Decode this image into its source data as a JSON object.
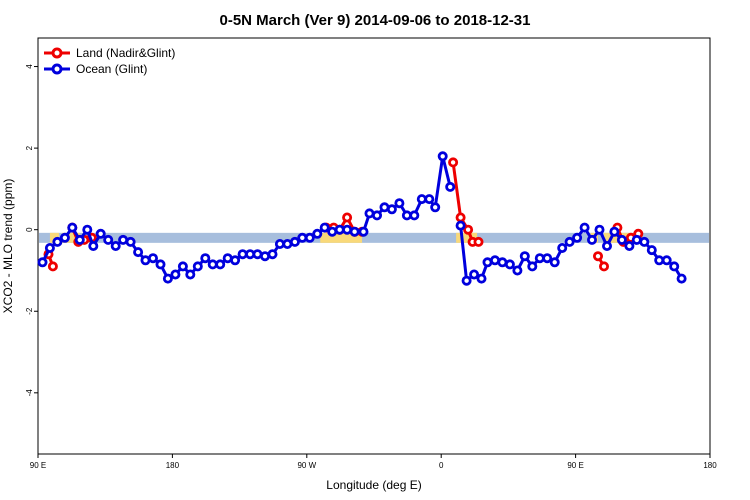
{
  "chart_data": {
    "type": "line",
    "title": "0-5N March (Ver 9)   2014-09-06 to 2018-12-31",
    "xlabel": "Longitude (deg E)",
    "ylabel": "XCO2 - MLO trend (ppm)",
    "xlim": [
      90,
      540
    ],
    "ylim": [
      -5.5,
      4.7
    ],
    "x_ticks": [
      {
        "value": 90,
        "label": "90 E"
      },
      {
        "value": 180,
        "label": "180"
      },
      {
        "value": 270,
        "label": "90 W"
      },
      {
        "value": 360,
        "label": "0"
      },
      {
        "value": 450,
        "label": "90 E"
      },
      {
        "value": 540,
        "label": "180"
      }
    ],
    "y_ticks": [
      {
        "value": -4,
        "label": "-4"
      },
      {
        "value": -2,
        "label": "-2"
      },
      {
        "value": 0,
        "label": "0"
      },
      {
        "value": 2,
        "label": "2"
      },
      {
        "value": 4,
        "label": "4"
      }
    ],
    "legend_position": "top-left",
    "band": {
      "y": -0.2,
      "color_ocean": "#a7bedd",
      "color_land": "#f9d97a",
      "land_ranges": [
        [
          98,
          104
        ],
        [
          106,
          118
        ],
        [
          279,
          307
        ],
        [
          370,
          384
        ],
        [
          460,
          465
        ],
        [
          469,
          488
        ]
      ]
    },
    "series": [
      {
        "name": "Land (Nadir&Glint)",
        "color": "#ee0000",
        "segments": [
          [
            [
              97,
              -0.6
            ],
            [
              100,
              -0.9
            ]
          ],
          [
            [
              113,
              0.05
            ],
            [
              117,
              -0.3
            ],
            [
              121,
              -0.25
            ],
            [
              126,
              -0.2
            ]
          ],
          [
            [
              283,
              0.05
            ],
            [
              288,
              0.05
            ],
            [
              292,
              0.0
            ],
            [
              297,
              0.3
            ],
            [
              302,
              -0.05
            ],
            [
              307,
              -0.05
            ]
          ],
          [
            [
              368,
              1.65
            ],
            [
              373,
              0.3
            ],
            [
              378,
              0.0
            ],
            [
              381,
              -0.3
            ],
            [
              385,
              -0.3
            ]
          ],
          [
            [
              465,
              -0.65
            ],
            [
              469,
              -0.9
            ]
          ],
          [
            [
              478,
              0.05
            ],
            [
              482,
              -0.3
            ],
            [
              487,
              -0.2
            ],
            [
              492,
              -0.1
            ]
          ]
        ]
      },
      {
        "name": "Ocean (Glint)",
        "color": "#0000dd",
        "segments": [
          [
            [
              93,
              -0.8
            ],
            [
              98,
              -0.45
            ],
            [
              103,
              -0.3
            ],
            [
              108,
              -0.2
            ],
            [
              113,
              0.05
            ],
            [
              118,
              -0.25
            ],
            [
              123,
              0.0
            ],
            [
              127,
              -0.4
            ],
            [
              132,
              -0.1
            ],
            [
              137,
              -0.25
            ],
            [
              142,
              -0.4
            ],
            [
              147,
              -0.25
            ],
            [
              152,
              -0.3
            ],
            [
              157,
              -0.55
            ],
            [
              162,
              -0.75
            ],
            [
              167,
              -0.7
            ],
            [
              172,
              -0.85
            ],
            [
              177,
              -1.2
            ],
            [
              182,
              -1.1
            ],
            [
              187,
              -0.9
            ],
            [
              192,
              -1.1
            ],
            [
              197,
              -0.9
            ],
            [
              202,
              -0.7
            ],
            [
              207,
              -0.85
            ],
            [
              212,
              -0.85
            ],
            [
              217,
              -0.7
            ],
            [
              222,
              -0.75
            ],
            [
              227,
              -0.6
            ],
            [
              232,
              -0.6
            ],
            [
              237,
              -0.6
            ],
            [
              242,
              -0.65
            ],
            [
              247,
              -0.6
            ],
            [
              252,
              -0.35
            ],
            [
              257,
              -0.35
            ],
            [
              262,
              -0.3
            ],
            [
              267,
              -0.2
            ],
            [
              272,
              -0.2
            ],
            [
              277,
              -0.1
            ],
            [
              282,
              0.05
            ],
            [
              287,
              -0.05
            ],
            [
              292,
              0.0
            ],
            [
              297,
              0.0
            ],
            [
              302,
              -0.05
            ],
            [
              308,
              -0.05
            ],
            [
              312,
              0.4
            ],
            [
              317,
              0.35
            ],
            [
              322,
              0.55
            ],
            [
              327,
              0.5
            ],
            [
              332,
              0.65
            ],
            [
              337,
              0.35
            ],
            [
              342,
              0.35
            ],
            [
              347,
              0.75
            ],
            [
              352,
              0.75
            ],
            [
              356,
              0.55
            ],
            [
              361,
              1.8
            ],
            [
              366,
              1.05
            ]
          ],
          [
            [
              373,
              0.1
            ],
            [
              377,
              -1.25
            ],
            [
              382,
              -1.1
            ],
            [
              387,
              -1.2
            ],
            [
              391,
              -0.8
            ],
            [
              396,
              -0.75
            ],
            [
              401,
              -0.8
            ],
            [
              406,
              -0.85
            ],
            [
              411,
              -1.0
            ],
            [
              416,
              -0.65
            ],
            [
              421,
              -0.9
            ],
            [
              426,
              -0.7
            ],
            [
              431,
              -0.7
            ],
            [
              436,
              -0.8
            ],
            [
              441,
              -0.45
            ],
            [
              446,
              -0.3
            ],
            [
              451,
              -0.2
            ],
            [
              456,
              0.05
            ],
            [
              461,
              -0.25
            ],
            [
              466,
              0.0
            ],
            [
              471,
              -0.4
            ],
            [
              476,
              -0.05
            ],
            [
              481,
              -0.25
            ],
            [
              486,
              -0.4
            ],
            [
              491,
              -0.25
            ],
            [
              496,
              -0.3
            ],
            [
              501,
              -0.5
            ],
            [
              506,
              -0.75
            ],
            [
              511,
              -0.75
            ],
            [
              516,
              -0.9
            ],
            [
              521,
              -1.2
            ]
          ]
        ]
      }
    ]
  }
}
